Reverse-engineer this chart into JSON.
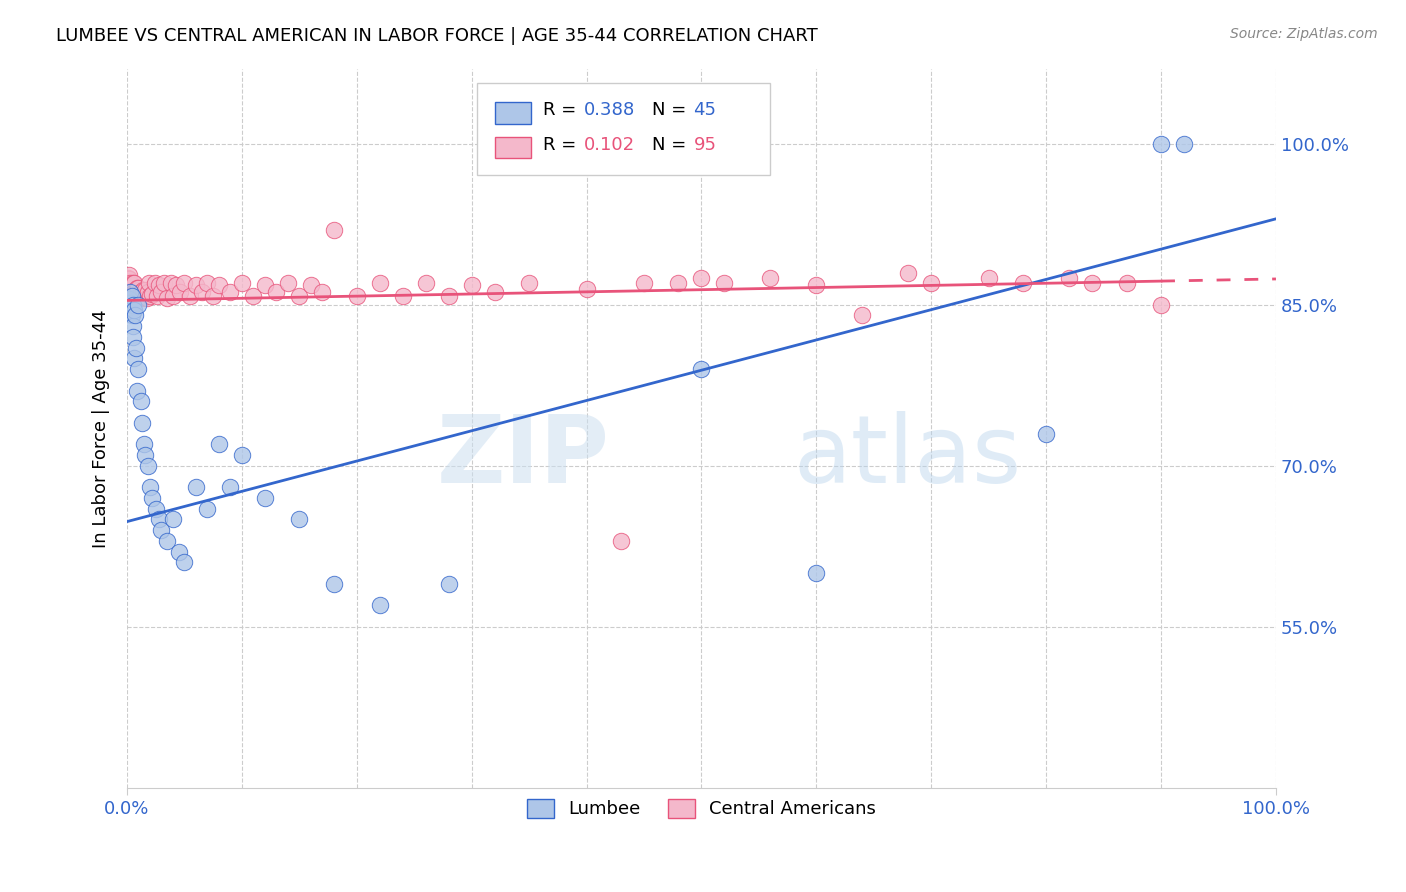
{
  "title": "LUMBEE VS CENTRAL AMERICAN IN LABOR FORCE | AGE 35-44 CORRELATION CHART",
  "source": "Source: ZipAtlas.com",
  "ylabel": "In Labor Force | Age 35-44",
  "ytick_labels": [
    "55.0%",
    "70.0%",
    "85.0%",
    "100.0%"
  ],
  "ytick_values": [
    0.55,
    0.7,
    0.85,
    1.0
  ],
  "xlim": [
    0.0,
    1.0
  ],
  "ylim": [
    0.4,
    1.07
  ],
  "lumbee_R": "0.388",
  "lumbee_N": "45",
  "central_R": "0.102",
  "central_N": "95",
  "lumbee_color": "#aec6e8",
  "central_color": "#f4b8cb",
  "lumbee_line_color": "#3366cc",
  "central_line_color": "#e8537a",
  "watermark_zip": "ZIP",
  "watermark_atlas": "atlas",
  "lumbee_x": [
    0.002,
    0.002,
    0.003,
    0.003,
    0.004,
    0.004,
    0.005,
    0.005,
    0.005,
    0.006,
    0.006,
    0.007,
    0.008,
    0.009,
    0.01,
    0.01,
    0.012,
    0.013,
    0.015,
    0.016,
    0.018,
    0.02,
    0.022,
    0.025,
    0.028,
    0.03,
    0.035,
    0.04,
    0.045,
    0.05,
    0.06,
    0.07,
    0.08,
    0.09,
    0.1,
    0.12,
    0.15,
    0.18,
    0.22,
    0.28,
    0.5,
    0.6,
    0.8,
    0.9,
    0.92
  ],
  "lumbee_y": [
    0.855,
    0.848,
    0.852,
    0.862,
    0.858,
    0.84,
    0.85,
    0.83,
    0.82,
    0.845,
    0.8,
    0.84,
    0.81,
    0.77,
    0.85,
    0.79,
    0.76,
    0.74,
    0.72,
    0.71,
    0.7,
    0.68,
    0.67,
    0.66,
    0.65,
    0.64,
    0.63,
    0.65,
    0.62,
    0.61,
    0.68,
    0.66,
    0.72,
    0.68,
    0.71,
    0.67,
    0.65,
    0.59,
    0.57,
    0.59,
    0.79,
    0.6,
    0.73,
    1.0,
    1.0
  ],
  "central_x": [
    0.001,
    0.001,
    0.001,
    0.001,
    0.001,
    0.002,
    0.002,
    0.002,
    0.002,
    0.002,
    0.002,
    0.003,
    0.003,
    0.003,
    0.003,
    0.004,
    0.004,
    0.004,
    0.005,
    0.005,
    0.005,
    0.006,
    0.006,
    0.006,
    0.007,
    0.007,
    0.008,
    0.008,
    0.009,
    0.009,
    0.01,
    0.01,
    0.011,
    0.012,
    0.013,
    0.014,
    0.015,
    0.016,
    0.017,
    0.018,
    0.019,
    0.02,
    0.022,
    0.024,
    0.026,
    0.028,
    0.03,
    0.032,
    0.035,
    0.038,
    0.04,
    0.043,
    0.046,
    0.05,
    0.055,
    0.06,
    0.065,
    0.07,
    0.075,
    0.08,
    0.09,
    0.1,
    0.11,
    0.12,
    0.13,
    0.14,
    0.15,
    0.16,
    0.17,
    0.18,
    0.2,
    0.22,
    0.24,
    0.26,
    0.28,
    0.3,
    0.32,
    0.35,
    0.4,
    0.43,
    0.45,
    0.48,
    0.5,
    0.52,
    0.56,
    0.6,
    0.64,
    0.68,
    0.7,
    0.75,
    0.78,
    0.82,
    0.84,
    0.87,
    0.9
  ],
  "central_y": [
    0.858,
    0.862,
    0.868,
    0.872,
    0.875,
    0.858,
    0.862,
    0.866,
    0.87,
    0.874,
    0.878,
    0.858,
    0.862,
    0.866,
    0.87,
    0.856,
    0.86,
    0.868,
    0.856,
    0.862,
    0.87,
    0.856,
    0.862,
    0.87,
    0.858,
    0.864,
    0.856,
    0.864,
    0.858,
    0.866,
    0.856,
    0.866,
    0.858,
    0.862,
    0.856,
    0.864,
    0.858,
    0.864,
    0.856,
    0.862,
    0.87,
    0.858,
    0.86,
    0.87,
    0.858,
    0.868,
    0.862,
    0.87,
    0.856,
    0.87,
    0.858,
    0.868,
    0.862,
    0.87,
    0.858,
    0.868,
    0.862,
    0.87,
    0.858,
    0.868,
    0.862,
    0.87,
    0.858,
    0.868,
    0.862,
    0.87,
    0.858,
    0.868,
    0.862,
    0.92,
    0.858,
    0.87,
    0.858,
    0.87,
    0.858,
    0.868,
    0.862,
    0.87,
    0.865,
    0.63,
    0.87,
    0.87,
    0.875,
    0.87,
    0.875,
    0.868,
    0.84,
    0.88,
    0.87,
    0.875,
    0.87,
    0.875,
    0.87,
    0.87,
    0.85
  ]
}
